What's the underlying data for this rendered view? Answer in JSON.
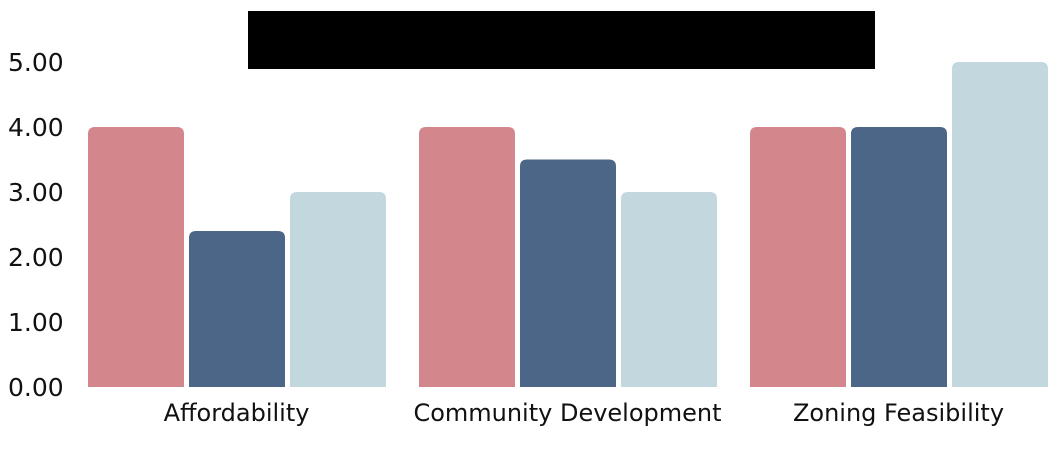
{
  "chart_data": {
    "type": "bar",
    "categories": [
      "Affordability",
      "Community Development",
      "Zoning Feasibility"
    ],
    "series": [
      {
        "values": [
          4.0,
          4.0,
          4.0
        ],
        "color": "#d3868b"
      },
      {
        "values": [
          2.4,
          3.5,
          4.0
        ],
        "color": "#4b6686"
      },
      {
        "values": [
          3.0,
          3.0,
          5.0
        ],
        "color": "#c3d7de"
      }
    ],
    "ylim": [
      0,
      5
    ],
    "yticks": [
      "0.00",
      "1.00",
      "2.00",
      "3.00",
      "4.00",
      "5.00"
    ],
    "grid": false,
    "title": "",
    "xlabel": "",
    "ylabel": ""
  }
}
